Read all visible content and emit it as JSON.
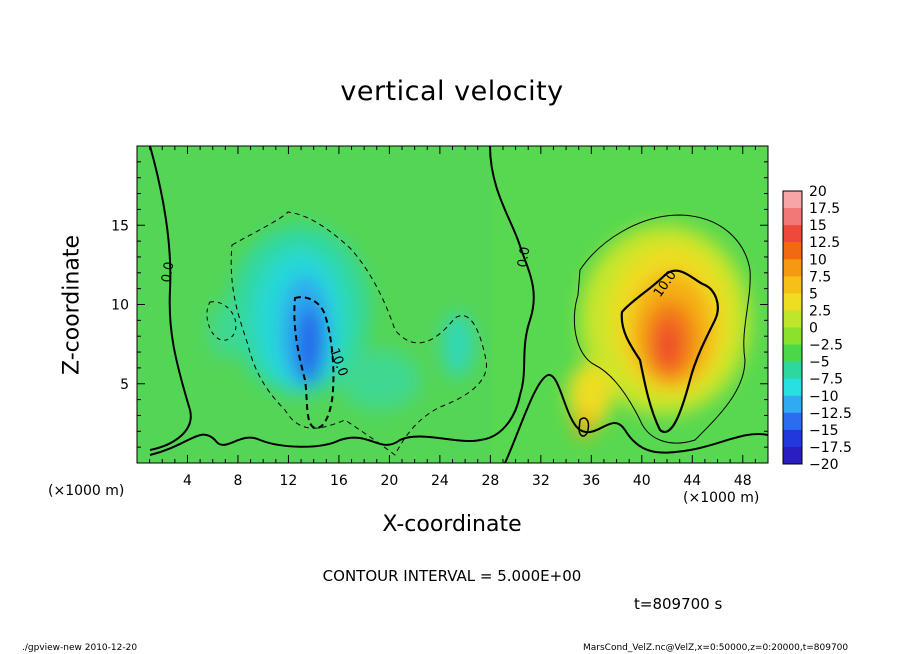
{
  "chart_data": {
    "type": "heatmap",
    "title": "vertical velocity",
    "xlabel": "X-coordinate",
    "ylabel": "Z-coordinate",
    "x_unit_label": "(×1000 m)",
    "xlim": [
      0,
      50
    ],
    "ylim": [
      0,
      20
    ],
    "x_ticks": [
      4,
      8,
      12,
      16,
      20,
      24,
      28,
      32,
      36,
      40,
      44,
      48
    ],
    "y_ticks": [
      5,
      10,
      15
    ],
    "colorbar": {
      "labels": [
        "20",
        "17.5",
        "15",
        "12.5",
        "10",
        "7.5",
        "5",
        "2.5",
        "0",
        "−2.5",
        "−5",
        "−7.5",
        "−10",
        "−12.5",
        "−15",
        "−17.5",
        "−20"
      ],
      "colors": [
        "#f7a6a6",
        "#f27878",
        "#ee4a3a",
        "#f26a10",
        "#f59a10",
        "#f5c018",
        "#eedd22",
        "#bfe62a",
        "#8ae22c",
        "#4ad84a",
        "#2cd8a0",
        "#28e0e0",
        "#30aaf0",
        "#2c6cf0",
        "#2238dd",
        "#2a1ec0",
        "#7818c8"
      ]
    },
    "contour_labels": [
      "0.0",
      "10.0",
      "0.0",
      "10.0"
    ],
    "contour_interval_text": "CONTOUR INTERVAL = 5.000E+00",
    "time_text": "t=809700 s"
  },
  "footer": {
    "left": "./gpview-new  2010-12-20",
    "right": "MarsCond_VelZ.nc@VelZ,x=0:50000,z=0:20000,t=809700"
  }
}
